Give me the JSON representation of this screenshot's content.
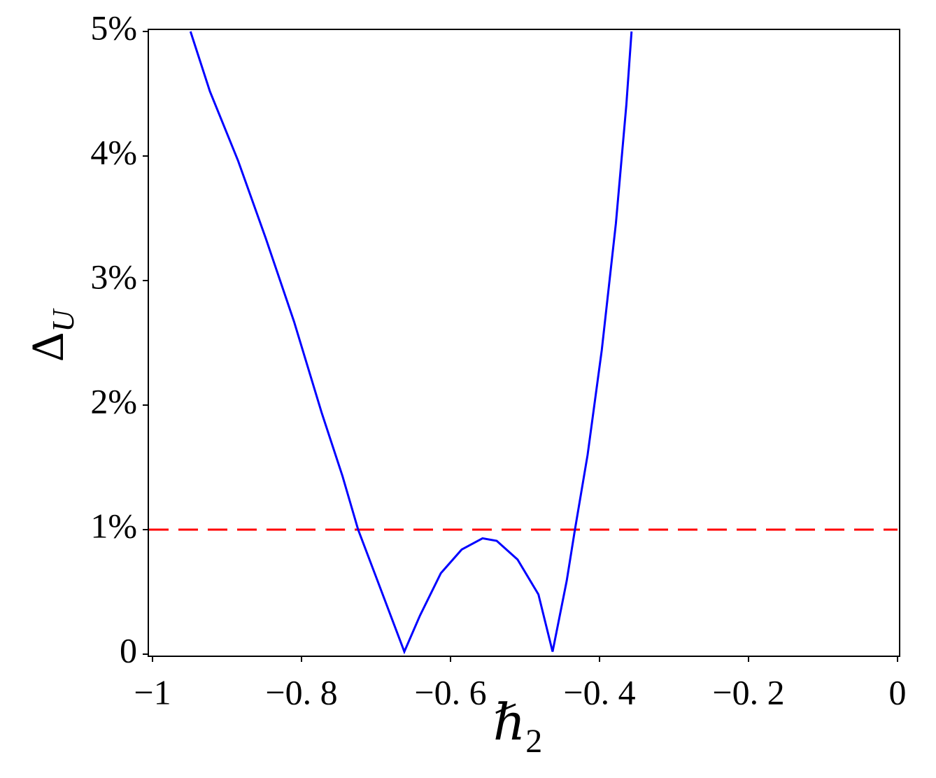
{
  "chart_data": {
    "type": "line",
    "x_label": {
      "symbol": "ℏ",
      "subscript": "2"
    },
    "y_label": {
      "symbol": "Δ",
      "subscript": "U"
    },
    "x": [
      -0.949,
      -0.923,
      -0.885,
      -0.848,
      -0.81,
      -0.773,
      -0.745,
      -0.724,
      -0.698,
      -0.662,
      -0.641,
      -0.613,
      -0.585,
      -0.557,
      -0.538,
      -0.51,
      -0.482,
      -0.463,
      -0.444,
      -0.433,
      -0.416,
      -0.397,
      -0.378,
      -0.364,
      -0.357
    ],
    "values": [
      5.0,
      4.52,
      3.96,
      3.34,
      2.67,
      1.94,
      1.43,
      1.0,
      0.59,
      0.02,
      0.31,
      0.65,
      0.84,
      0.93,
      0.91,
      0.76,
      0.48,
      0.02,
      0.59,
      1.0,
      1.6,
      2.44,
      3.46,
      4.41,
      5.0
    ],
    "color": "#0000ff",
    "reference_line": {
      "value": 1,
      "color": "#ff0000",
      "dashed": true
    },
    "xlim": [
      -1,
      0
    ],
    "ylim": [
      0,
      5
    ],
    "xticks": [
      {
        "value": -1,
        "label": "−1"
      },
      {
        "value": -0.8,
        "label": "−0. 8"
      },
      {
        "value": -0.6,
        "label": "−0. 6"
      },
      {
        "value": -0.4,
        "label": "−0. 4"
      },
      {
        "value": -0.2,
        "label": "−0. 2"
      },
      0
    ],
    "yticks": [
      0,
      {
        "value": 1,
        "label": "1%"
      },
      {
        "value": 2,
        "label": "2%"
      },
      {
        "value": 3,
        "label": "3%"
      },
      {
        "value": 4,
        "label": "4%"
      },
      {
        "value": 5,
        "label": "5%"
      }
    ],
    "grid": false
  }
}
